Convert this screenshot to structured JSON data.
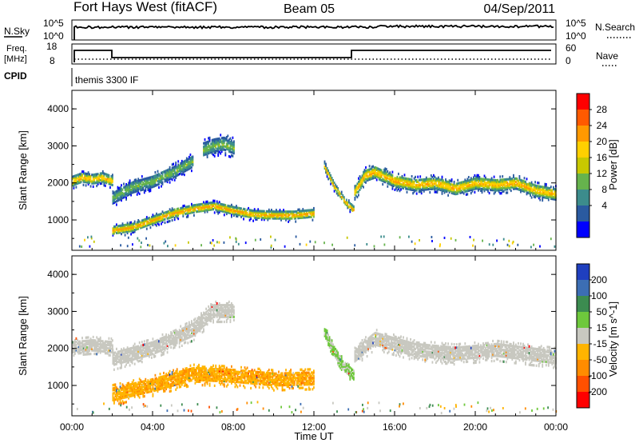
{
  "header": {
    "title": "Fort Hays West (fitACF)",
    "beam": "Beam 05",
    "date": "04/Sep/2011"
  },
  "top_panels": {
    "nsky": {
      "label": "N.Sky",
      "ticks": [
        "10^5",
        "10^0"
      ]
    },
    "nsearch": {
      "label": "N.Search",
      "ticks": [
        "10^5",
        "10^0"
      ]
    },
    "freq": {
      "label_line1": "Freq.",
      "label_line2": "[MHz]",
      "ticks": [
        "18",
        "8"
      ]
    },
    "nave": {
      "label": "Nave",
      "ticks": [
        "60",
        "0"
      ]
    },
    "cpid": {
      "label": "CPID",
      "value": "themis 3300 IF"
    }
  },
  "power_panel": {
    "ylabel": "Slant Range [km]",
    "yticks": [
      "4000",
      "3000",
      "2000",
      "1000"
    ],
    "colorbar": {
      "label": "Power [dB]",
      "ticks": [
        "28",
        "24",
        "20",
        "16",
        "12",
        "8",
        "4"
      ],
      "colors": [
        "#ff0000",
        "#ff5a00",
        "#ff9900",
        "#ffd000",
        "#c8c800",
        "#66b34d",
        "#3c8c8c",
        "#2a5aa0",
        "#0000ff"
      ]
    }
  },
  "velocity_panel": {
    "ylabel": "Slant Range [km]",
    "yticks": [
      "4000",
      "3000",
      "2000",
      "1000"
    ],
    "colorbar": {
      "label": "Velocity [m s^-1]",
      "ticks": [
        "200",
        "100",
        "50",
        "15",
        "-15",
        "-50",
        "-100",
        "-200"
      ],
      "colors": [
        "#1f3fbf",
        "#3c6eb4",
        "#3c8c50",
        "#6ec83c",
        "#c8c8c0",
        "#ffb400",
        "#ff8c00",
        "#ff5000",
        "#ff0000"
      ]
    }
  },
  "xaxis": {
    "label": "Time UT",
    "ticks": [
      "00:00",
      "04:00",
      "08:00",
      "12:00",
      "16:00",
      "20:00",
      "00:00"
    ]
  },
  "chart_data": {
    "type": "heatmap",
    "title": "Fort Hays West (fitACF)",
    "xlabel": "Time UT",
    "ylabel": "Slant Range [km]",
    "xlim": [
      0,
      24
    ],
    "ylim": [
      180,
      4500
    ],
    "series": [
      {
        "name": "Power [dB]",
        "clim": [
          0,
          32
        ],
        "bands": [
          {
            "points": [
              [
                0,
                2050
              ],
              [
                0.5,
                2150
              ],
              [
                1,
                2100
              ],
              [
                1.5,
                2150
              ],
              [
                2,
                2050
              ]
            ],
            "width": 250,
            "peak": 24
          },
          {
            "points": [
              [
                2,
                1600
              ],
              [
                3,
                1900
              ],
              [
                4,
                2050
              ],
              [
                5,
                2300
              ],
              [
                6,
                2600
              ]
            ],
            "width": 300,
            "peak": 14
          },
          {
            "points": [
              [
                6.5,
                2900
              ],
              [
                7,
                3000
              ],
              [
                7.5,
                3050
              ],
              [
                8,
                2950
              ]
            ],
            "width": 350,
            "peak": 14
          },
          {
            "points": [
              [
                2,
                720
              ],
              [
                3,
                800
              ],
              [
                4,
                1000
              ],
              [
                5,
                1180
              ],
              [
                6,
                1300
              ],
              [
                7,
                1380
              ],
              [
                8,
                1250
              ],
              [
                9,
                1150
              ],
              [
                10,
                1130
              ],
              [
                11,
                1130
              ],
              [
                12,
                1180
              ]
            ],
            "width": 220,
            "peak": 24
          },
          {
            "points": [
              [
                12.5,
                2450
              ],
              [
                13,
                1900
              ],
              [
                13.5,
                1500
              ],
              [
                14,
                1250
              ]
            ],
            "width": 180,
            "peak": 24
          },
          {
            "points": [
              [
                14,
                1750
              ],
              [
                14.5,
                2200
              ],
              [
                15,
                2300
              ],
              [
                16,
                2050
              ],
              [
                17,
                1950
              ],
              [
                18,
                2000
              ],
              [
                19,
                1850
              ],
              [
                20,
                2000
              ],
              [
                21,
                1950
              ],
              [
                22,
                2000
              ],
              [
                23,
                1800
              ],
              [
                24,
                1700
              ]
            ],
            "width": 300,
            "peak": 24
          }
        ]
      },
      {
        "name": "Velocity [m s^-1]",
        "clim": [
          -250,
          250
        ],
        "bands": [
          {
            "points": [
              [
                0,
                2050
              ],
              [
                1,
                2100
              ],
              [
                2,
                2050
              ]
            ],
            "width": 300,
            "velocity": 0
          },
          {
            "points": [
              [
                2,
                1700
              ],
              [
                4,
                2000
              ],
              [
                6,
                2500
              ],
              [
                7,
                3000
              ],
              [
                8,
                3000
              ]
            ],
            "width": 350,
            "velocity": 0
          },
          {
            "points": [
              [
                2,
                750
              ],
              [
                4,
                1000
              ],
              [
                6,
                1300
              ],
              [
                8,
                1250
              ],
              [
                10,
                1150
              ],
              [
                12,
                1180
              ]
            ],
            "width": 350,
            "velocity": -80
          },
          {
            "points": [
              [
                12.5,
                2450
              ],
              [
                13,
                1900
              ],
              [
                13.5,
                1500
              ],
              [
                14,
                1250
              ]
            ],
            "width": 250,
            "velocity": 40
          },
          {
            "points": [
              [
                14,
                1800
              ],
              [
                15,
                2250
              ],
              [
                17,
                1950
              ],
              [
                19,
                1850
              ],
              [
                21,
                1950
              ],
              [
                24,
                1750
              ]
            ],
            "width": 350,
            "velocity": 0
          }
        ]
      }
    ]
  }
}
